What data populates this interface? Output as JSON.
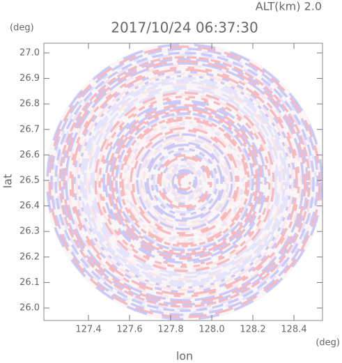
{
  "chart_data": {
    "type": "radar-map",
    "title": "2017/10/24 06:37:30",
    "subtitle": "ALT(km) 2.0",
    "x_label": "lon",
    "y_label": "lat",
    "x_unit": "(deg)",
    "y_unit": "(deg)",
    "xlim": [
      127.183,
      128.539
    ],
    "ylim": [
      25.951,
      27.038
    ],
    "xticks": [
      127.4,
      127.6,
      127.8,
      {
        "value": 128.0,
        "label": "128.0"
      },
      128.2,
      128.4
    ],
    "yticks": [
      {
        "value": 26.0,
        "label": "26.0"
      },
      26.1,
      26.2,
      26.3,
      26.4,
      26.5,
      26.6,
      26.7,
      26.8,
      26.9,
      {
        "value": 27.0,
        "label": "27.0"
      }
    ]
  }
}
